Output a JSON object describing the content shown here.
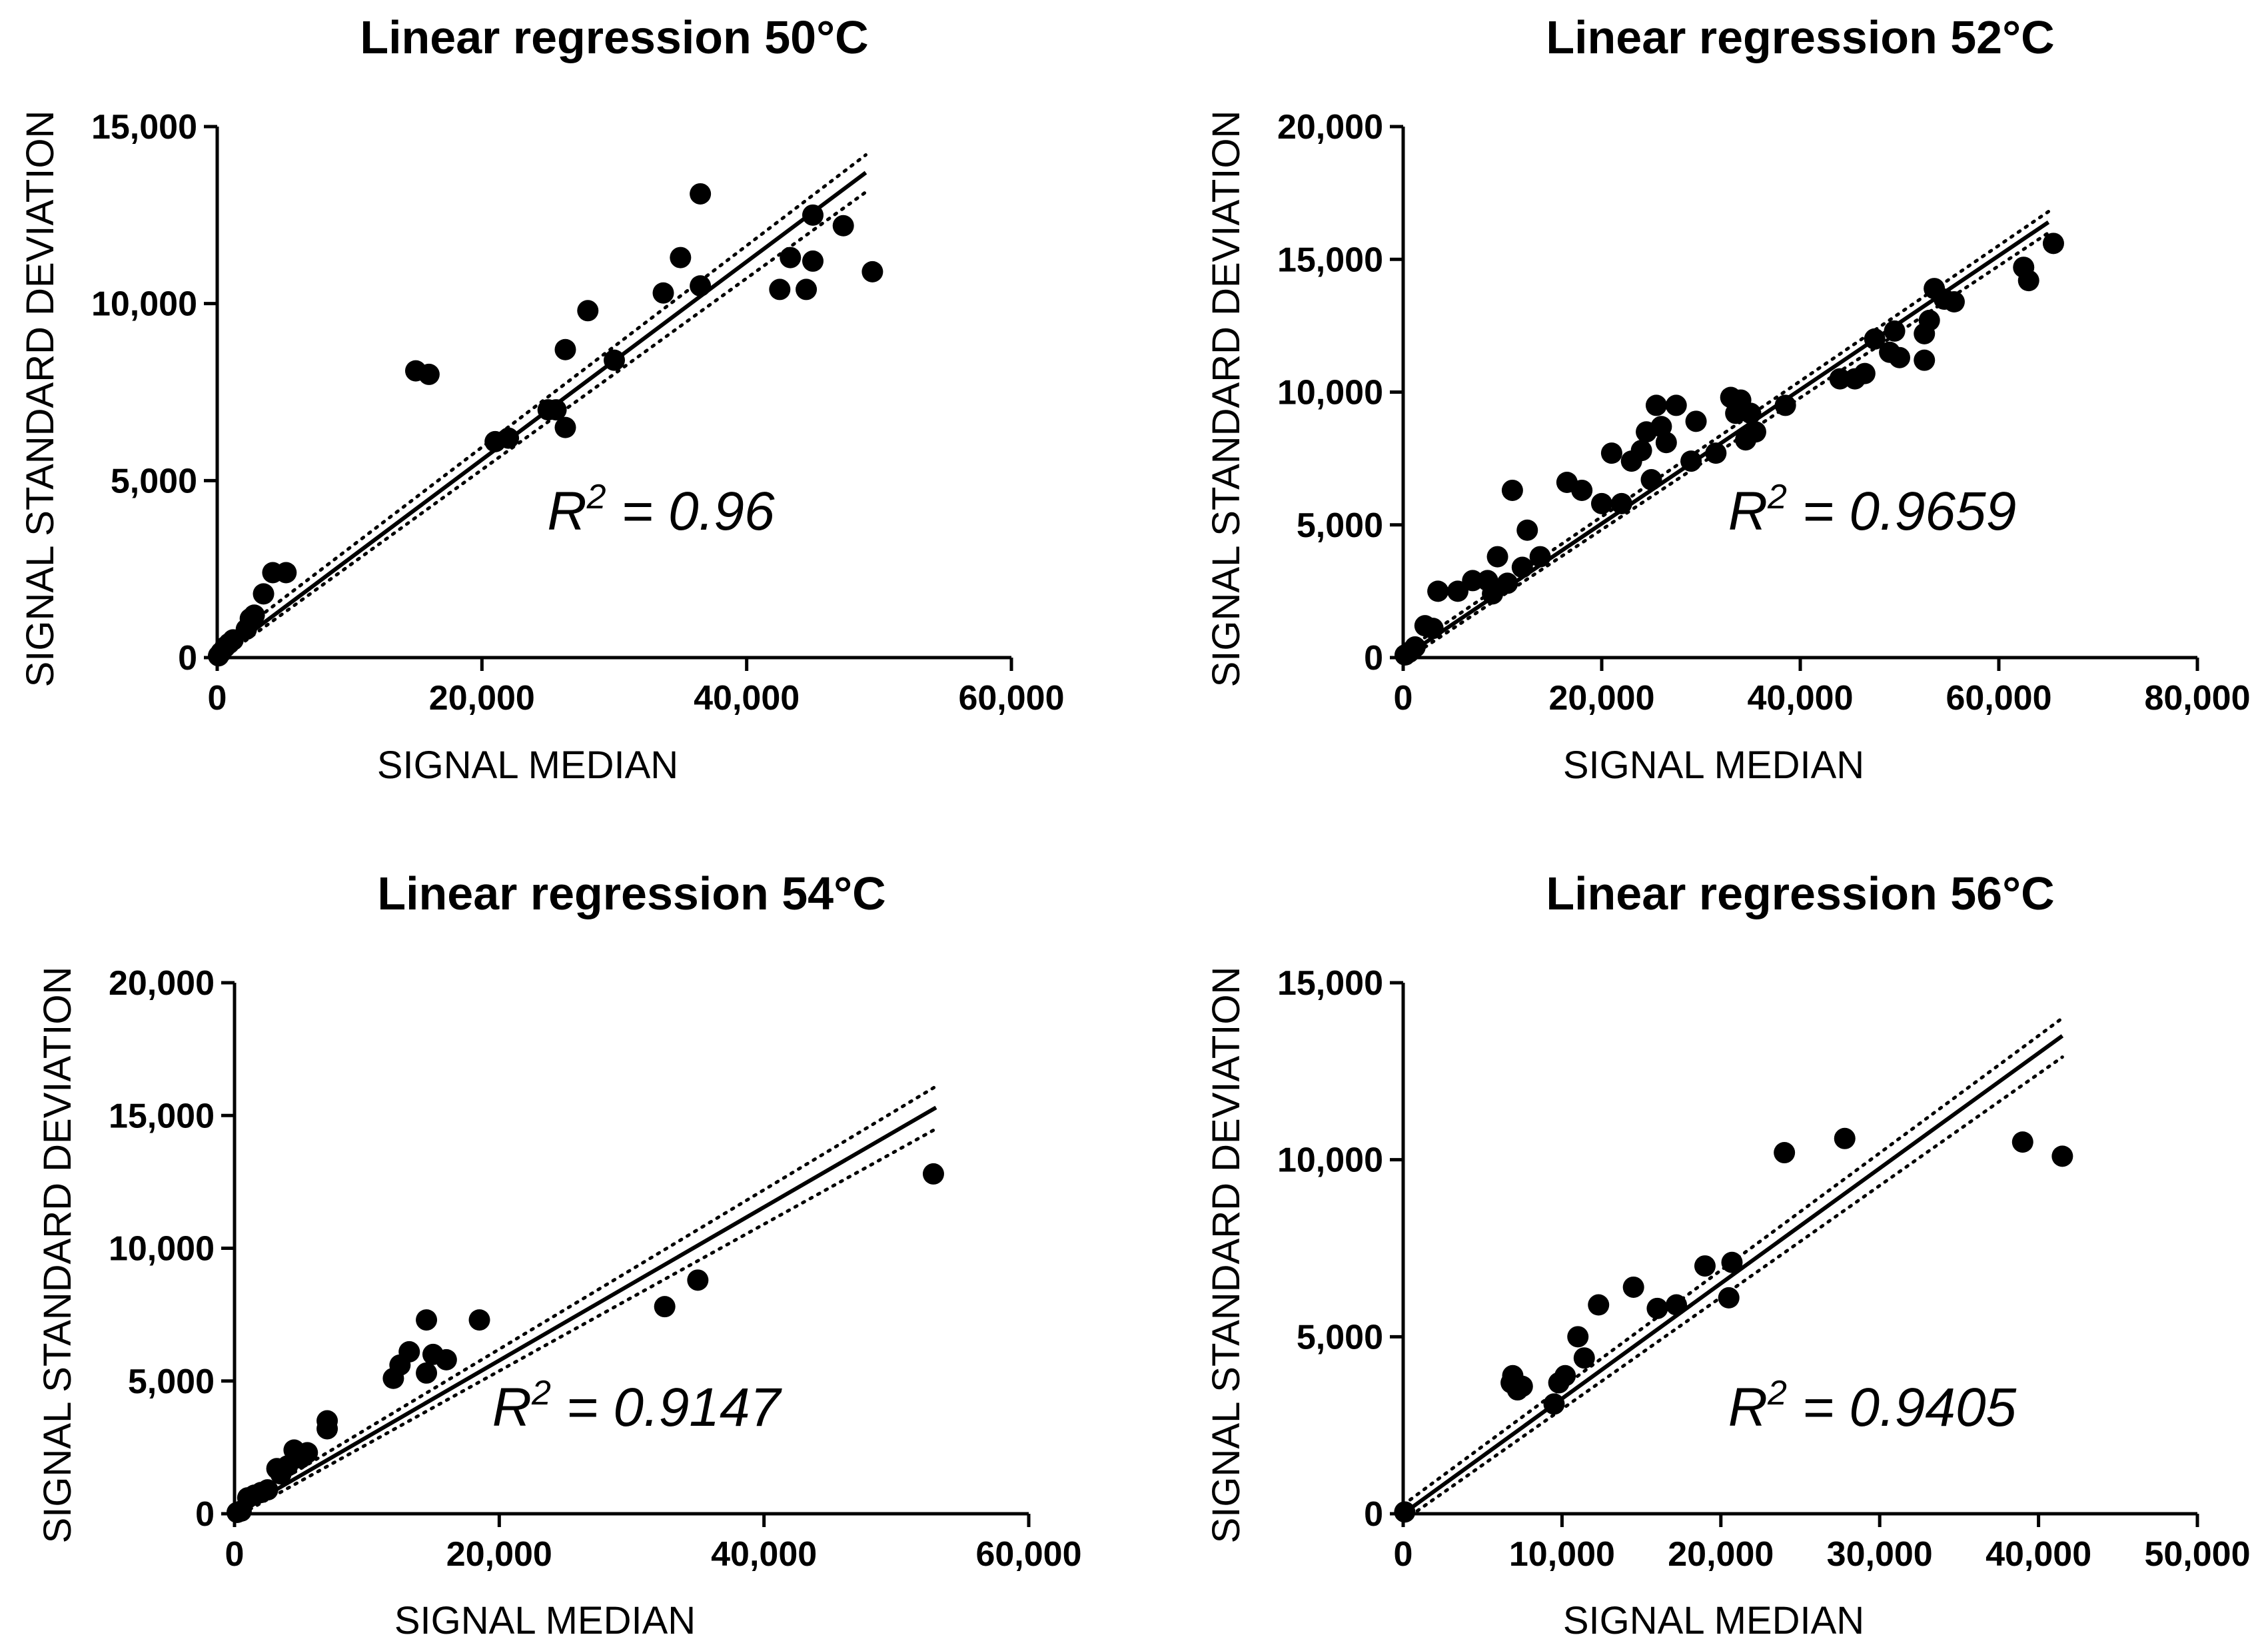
{
  "chart_data": [
    {
      "type": "scatter",
      "title": "Linear regression 50°C",
      "xlabel": "SIGNAL MEDIAN",
      "ylabel": "SIGNAL STANDARD DEVIATION",
      "xlim": [
        0,
        60000
      ],
      "ylim": [
        0,
        15000
      ],
      "xticks": [
        0,
        20000,
        40000,
        60000
      ],
      "yticks": [
        0,
        5000,
        10000,
        15000
      ],
      "xtick_labels": [
        "0",
        "20,000",
        "40,000",
        "60,000"
      ],
      "ytick_labels": [
        "0",
        "5,000",
        "10,000",
        "15,000"
      ],
      "r2_label": "= 0.96",
      "fit_line": {
        "x": [
          0,
          49000
        ],
        "y": [
          0,
          13700
        ]
      },
      "confidence_band": {
        "upper": [
          [
            0,
            250
          ],
          [
            49000,
            14200
          ]
        ],
        "lower": [
          [
            0,
            -100
          ],
          [
            49000,
            13150
          ]
        ]
      },
      "points": [
        [
          100,
          50
        ],
        [
          300,
          150
        ],
        [
          600,
          300
        ],
        [
          900,
          400
        ],
        [
          1200,
          500
        ],
        [
          2200,
          800
        ],
        [
          2500,
          1100
        ],
        [
          2800,
          1200
        ],
        [
          3500,
          1800
        ],
        [
          4200,
          2400
        ],
        [
          5200,
          2400
        ],
        [
          15000,
          8100
        ],
        [
          16000,
          8000
        ],
        [
          21000,
          6100
        ],
        [
          22000,
          6200
        ],
        [
          25000,
          7000
        ],
        [
          25600,
          7000
        ],
        [
          26300,
          6500
        ],
        [
          26300,
          8700
        ],
        [
          28000,
          9800
        ],
        [
          30000,
          8400
        ],
        [
          33700,
          10300
        ],
        [
          35000,
          11300
        ],
        [
          36500,
          13100
        ],
        [
          36500,
          10500
        ],
        [
          42500,
          10400
        ],
        [
          43300,
          11300
        ],
        [
          44500,
          10400
        ],
        [
          45000,
          11200
        ],
        [
          45000,
          12500
        ],
        [
          47300,
          12200
        ],
        [
          49500,
          10900
        ]
      ]
    },
    {
      "type": "scatter",
      "title": "Linear regression 52°C",
      "xlabel": "SIGNAL MEDIAN",
      "ylabel": "SIGNAL STANDARD DEVIATION",
      "xlim": [
        0,
        80000
      ],
      "ylim": [
        0,
        20000
      ],
      "xticks": [
        0,
        20000,
        40000,
        60000,
        80000
      ],
      "yticks": [
        0,
        5000,
        10000,
        15000,
        20000
      ],
      "xtick_labels": [
        "0",
        "20,000",
        "40,000",
        "60,000",
        "80,000"
      ],
      "ytick_labels": [
        "0",
        "5,000",
        "10,000",
        "15,000",
        "20,000"
      ],
      "r2_label": "= 0.9659",
      "fit_line": {
        "x": [
          0,
          65000
        ],
        "y": [
          0,
          16400
        ]
      },
      "confidence_band": {
        "upper": [
          [
            0,
            200
          ],
          [
            65000,
            16800
          ]
        ],
        "lower": [
          [
            0,
            -150
          ],
          [
            65000,
            16000
          ]
        ]
      },
      "points": [
        [
          200,
          100
        ],
        [
          600,
          200
        ],
        [
          1200,
          400
        ],
        [
          2200,
          1200
        ],
        [
          3000,
          1100
        ],
        [
          3500,
          2500
        ],
        [
          5500,
          2500
        ],
        [
          7000,
          2900
        ],
        [
          8500,
          2900
        ],
        [
          9000,
          2400
        ],
        [
          9500,
          3800
        ],
        [
          10500,
          2800
        ],
        [
          11000,
          6300
        ],
        [
          12000,
          3400
        ],
        [
          12500,
          4800
        ],
        [
          13800,
          3800
        ],
        [
          16500,
          6600
        ],
        [
          18000,
          6300
        ],
        [
          20000,
          5800
        ],
        [
          21000,
          7700
        ],
        [
          22000,
          5800
        ],
        [
          23000,
          7400
        ],
        [
          24000,
          7800
        ],
        [
          24500,
          8500
        ],
        [
          25000,
          6700
        ],
        [
          25500,
          9500
        ],
        [
          26000,
          8700
        ],
        [
          26500,
          8100
        ],
        [
          27500,
          9500
        ],
        [
          29000,
          7400
        ],
        [
          29500,
          8900
        ],
        [
          31500,
          7700
        ],
        [
          33000,
          9800
        ],
        [
          33500,
          9200
        ],
        [
          34000,
          9700
        ],
        [
          34500,
          8200
        ],
        [
          35000,
          9200
        ],
        [
          35500,
          8500
        ],
        [
          38500,
          9500
        ],
        [
          44000,
          10500
        ],
        [
          45500,
          10500
        ],
        [
          46500,
          10700
        ],
        [
          47500,
          12000
        ],
        [
          49000,
          11500
        ],
        [
          49500,
          12300
        ],
        [
          50000,
          11300
        ],
        [
          52500,
          11200
        ],
        [
          52500,
          12200
        ],
        [
          53000,
          12700
        ],
        [
          53500,
          13900
        ],
        [
          54500,
          13500
        ],
        [
          55500,
          13400
        ],
        [
          62500,
          14700
        ],
        [
          63000,
          14200
        ],
        [
          65500,
          15600
        ]
      ]
    },
    {
      "type": "scatter",
      "title": "Linear regression 54°C",
      "xlabel": "SIGNAL MEDIAN",
      "ylabel": "SIGNAL STANDARD DEVIATION",
      "xlim": [
        0,
        60000
      ],
      "ylim": [
        0,
        20000
      ],
      "xticks": [
        0,
        20000,
        40000,
        60000
      ],
      "yticks": [
        0,
        5000,
        10000,
        15000,
        20000
      ],
      "xtick_labels": [
        "0",
        "20,000",
        "40,000",
        "60,000"
      ],
      "ytick_labels": [
        "0",
        "5,000",
        "10,000",
        "15,000",
        "20,000"
      ],
      "r2_label": "= 0.9147",
      "fit_line": {
        "x": [
          0,
          53000
        ],
        "y": [
          0,
          15300
        ]
      },
      "confidence_band": {
        "upper": [
          [
            0,
            200
          ],
          [
            53000,
            16100
          ]
        ],
        "lower": [
          [
            0,
            -150
          ],
          [
            53000,
            14500
          ]
        ]
      },
      "points": [
        [
          200,
          50
        ],
        [
          500,
          100
        ],
        [
          1000,
          600
        ],
        [
          1500,
          700
        ],
        [
          2000,
          800
        ],
        [
          2500,
          900
        ],
        [
          3200,
          1700
        ],
        [
          3500,
          1500
        ],
        [
          4000,
          1800
        ],
        [
          4500,
          2400
        ],
        [
          5000,
          2100
        ],
        [
          5500,
          2300
        ],
        [
          7000,
          3200
        ],
        [
          7000,
          3500
        ],
        [
          12000,
          5100
        ],
        [
          12500,
          5600
        ],
        [
          13200,
          6100
        ],
        [
          14500,
          5300
        ],
        [
          14500,
          7300
        ],
        [
          15000,
          6000
        ],
        [
          16000,
          5800
        ],
        [
          18500,
          7300
        ],
        [
          32500,
          7800
        ],
        [
          35000,
          8800
        ],
        [
          52800,
          12800
        ]
      ]
    },
    {
      "type": "scatter",
      "title": "Linear regression 56°C",
      "xlabel": "SIGNAL MEDIAN",
      "ylabel": "SIGNAL STANDARD DEVIATION",
      "xlim": [
        0,
        50000
      ],
      "ylim": [
        0,
        15000
      ],
      "xticks": [
        0,
        10000,
        20000,
        30000,
        40000,
        50000
      ],
      "yticks": [
        0,
        5000,
        10000,
        15000
      ],
      "xtick_labels": [
        "0",
        "10,000",
        "20,000",
        "30,000",
        "40,000",
        "50,000"
      ],
      "ytick_labels": [
        "0",
        "5,000",
        "10,000",
        "15,000"
      ],
      "r2_label": "= 0.9405",
      "fit_line": {
        "x": [
          0,
          41500
        ],
        "y": [
          0,
          13500
        ]
      },
      "confidence_band": {
        "upper": [
          [
            0,
            250
          ],
          [
            41500,
            14000
          ]
        ],
        "lower": [
          [
            0,
            -200
          ],
          [
            41500,
            12900
          ]
        ]
      },
      "points": [
        [
          100,
          50
        ],
        [
          6800,
          3700
        ],
        [
          6900,
          3900
        ],
        [
          7200,
          3500
        ],
        [
          7500,
          3600
        ],
        [
          9500,
          3100
        ],
        [
          9800,
          3700
        ],
        [
          10200,
          3900
        ],
        [
          11000,
          5000
        ],
        [
          11400,
          4400
        ],
        [
          12300,
          5900
        ],
        [
          14500,
          6400
        ],
        [
          16000,
          5800
        ],
        [
          17200,
          5900
        ],
        [
          19000,
          7000
        ],
        [
          20500,
          6100
        ],
        [
          20700,
          7100
        ],
        [
          24000,
          10200
        ],
        [
          27800,
          10600
        ],
        [
          39000,
          10500
        ],
        [
          41500,
          10100
        ]
      ]
    }
  ]
}
